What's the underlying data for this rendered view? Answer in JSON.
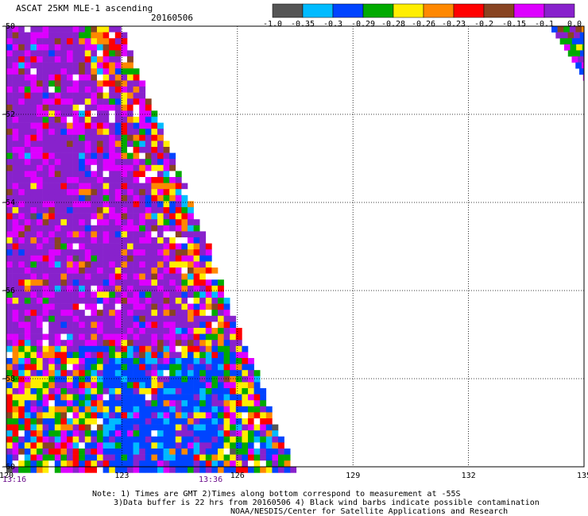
{
  "header": {
    "title": "ASCAT 25KM MLE-1 ascending",
    "date": "20160506"
  },
  "colorbar": {
    "colors": [
      "#555555",
      "#00bbff",
      "#0044ff",
      "#00aa00",
      "#ffee00",
      "#ff8800",
      "#ff0000",
      "#884422",
      "#dd00ff",
      "#8822cc"
    ],
    "labels": [
      "-1.0",
      "-0.35",
      "-0.3",
      "-0.29",
      "-0.28",
      "-0.26",
      "-0.23",
      "-0.2",
      "-0.15",
      "-0.1",
      "0.0"
    ]
  },
  "chart_data": {
    "type": "heatmap",
    "title": "ASCAT 25KM MLE-1 ascending",
    "xlim": [
      120,
      135
    ],
    "ylim": [
      -60,
      -50
    ],
    "x_ticks": [
      "120",
      "123",
      "126",
      "129",
      "132",
      "135"
    ],
    "y_ticks": [
      "-50",
      "-52",
      "-54",
      "-56",
      "-58",
      "-60"
    ],
    "color_scale": [
      -1.0,
      -0.35,
      -0.3,
      -0.29,
      -0.28,
      -0.26,
      -0.23,
      -0.2,
      -0.15,
      -0.1,
      0.0
    ],
    "swaths": [
      {
        "region": "western swath",
        "lon_min": 120,
        "lat_range": [
          -60,
          -50
        ],
        "edge": [
          [
            -50,
            122.9
          ],
          [
            -51,
            123.3
          ],
          [
            -52,
            123.8
          ],
          [
            -53,
            124.3
          ],
          [
            -54,
            124.7
          ],
          [
            -55,
            125.2
          ],
          [
            -56,
            125.6
          ],
          [
            -57,
            126.0
          ],
          [
            -58,
            126.5
          ],
          [
            -59,
            126.9
          ],
          [
            -60,
            127.4
          ]
        ]
      },
      {
        "region": "eastern swath corner",
        "lon_max": 135,
        "lat_range": [
          -51.2,
          -50
        ],
        "edge": [
          [
            -50,
            134.1
          ],
          [
            -50.5,
            134.5
          ],
          [
            -51.2,
            135.0
          ]
        ]
      }
    ],
    "times": [
      "13:16",
      "13:36"
    ]
  },
  "notes": {
    "line1": "Note: 1) Times are GMT 2)Times along bottom correspond to measurement at -55S",
    "line2": "3)Data buffer is 22 hrs from 20160506 4) Black wind barbs indicate possible contamination",
    "line3": "NOAA/NESDIS/Center for Satellite Applications and Research"
  }
}
